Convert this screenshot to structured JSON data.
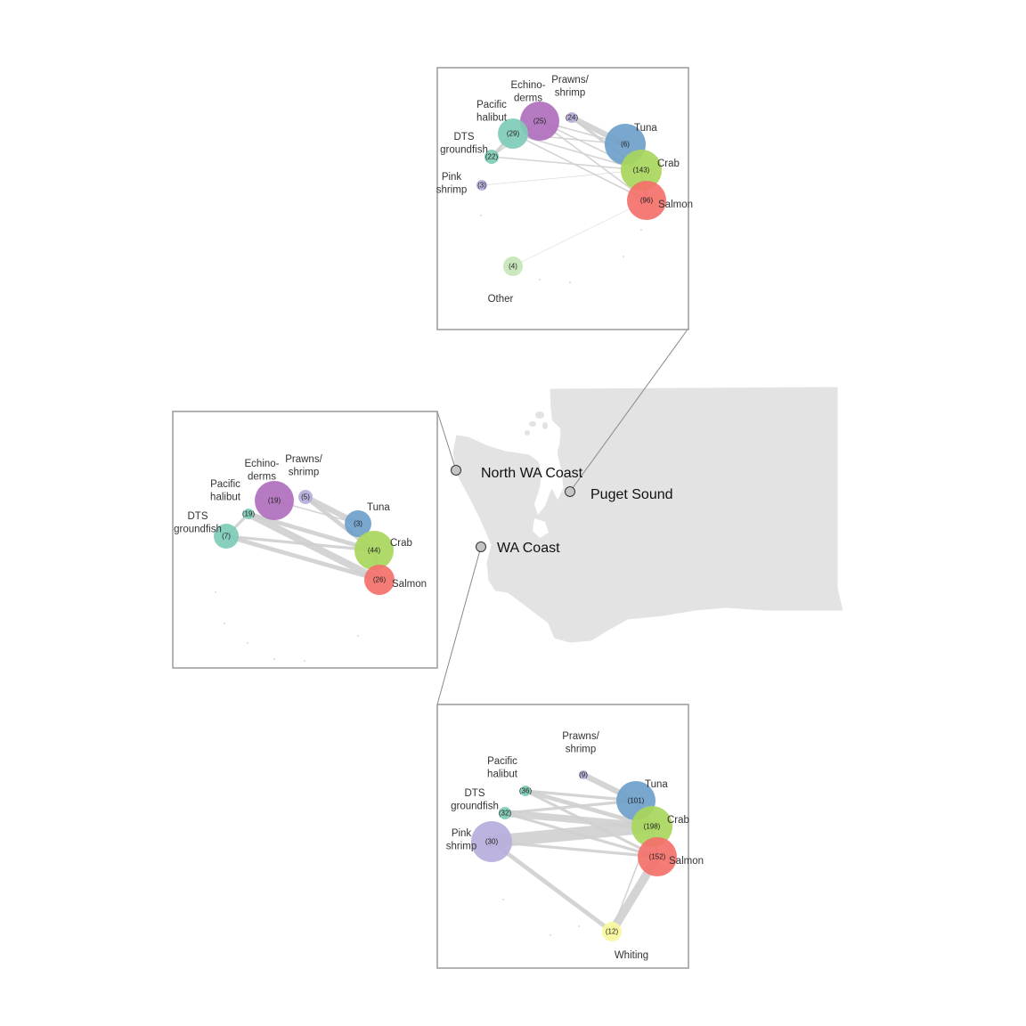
{
  "regions": [
    {
      "id": "north",
      "label": "North WA Coast"
    },
    {
      "id": "puget",
      "label": "Puget Sound"
    },
    {
      "id": "wa",
      "label": "WA Coast"
    }
  ],
  "networks": {
    "puget": {
      "nodes": [
        {
          "id": "echinoderms",
          "label": [
            "Echino-",
            "derms"
          ],
          "count": "(25)",
          "color": "#b06fbd"
        },
        {
          "id": "prawns",
          "label": [
            "Prawns/",
            "shrimp"
          ],
          "count": "(24)",
          "color": "#b6aedb"
        },
        {
          "id": "halibut",
          "label": [
            "Pacific",
            "halibut"
          ],
          "count": "(29)",
          "color": "#7fcbb7"
        },
        {
          "id": "dts",
          "label": [
            "DTS",
            "groundfish"
          ],
          "count": "(22)",
          "color": "#7fcbb7"
        },
        {
          "id": "pinkshrimp",
          "label": [
            "Pink",
            "shrimp"
          ],
          "count": "(3)",
          "color": "#b6aedb"
        },
        {
          "id": "tuna",
          "label": [
            "Tuna"
          ],
          "count": "(6)",
          "color": "#6f9fca"
        },
        {
          "id": "crab",
          "label": [
            "Crab"
          ],
          "count": "(143)",
          "color": "#a8d65b"
        },
        {
          "id": "salmon",
          "label": [
            "Salmon"
          ],
          "count": "(96)",
          "color": "#f4706a"
        },
        {
          "id": "other",
          "label": [
            "Other"
          ],
          "count": "(4)",
          "color": "#c6e6b9"
        }
      ],
      "edges": [
        {
          "from": "prawns",
          "to": "tuna",
          "weight": 4
        },
        {
          "from": "prawns",
          "to": "crab",
          "weight": 2
        },
        {
          "from": "echinoderms",
          "to": "tuna",
          "weight": 1
        },
        {
          "from": "echinoderms",
          "to": "crab",
          "weight": 1
        },
        {
          "from": "echinoderms",
          "to": "salmon",
          "weight": 1
        },
        {
          "from": "echinoderms",
          "to": "dts",
          "weight": 1
        },
        {
          "from": "halibut",
          "to": "crab",
          "weight": 1
        },
        {
          "from": "halibut",
          "to": "salmon",
          "weight": 1
        },
        {
          "from": "halibut",
          "to": "tuna",
          "weight": 1
        },
        {
          "from": "halibut",
          "to": "dts",
          "weight": 2
        },
        {
          "from": "dts",
          "to": "crab",
          "weight": 1
        },
        {
          "from": "pinkshrimp",
          "to": "crab",
          "weight": 0.5
        },
        {
          "from": "tuna",
          "to": "crab",
          "weight": 1
        },
        {
          "from": "crab",
          "to": "salmon",
          "weight": 2
        },
        {
          "from": "other",
          "to": "salmon",
          "weight": 0.4
        }
      ]
    },
    "north": {
      "nodes": [
        {
          "id": "echinoderms",
          "label": [
            "Echino-",
            "derms"
          ],
          "count": "(19)",
          "color": "#b06fbd"
        },
        {
          "id": "prawns",
          "label": [
            "Prawns/",
            "shrimp"
          ],
          "count": "(5)",
          "color": "#b6aedb"
        },
        {
          "id": "halibut",
          "label": [
            "Pacific",
            "halibut"
          ],
          "count": "(19)",
          "color": "#7fcbb7"
        },
        {
          "id": "dts",
          "label": [
            "DTS",
            "groundfish"
          ],
          "count": "(7)",
          "color": "#7fcbb7"
        },
        {
          "id": "tuna",
          "label": [
            "Tuna"
          ],
          "count": "(3)",
          "color": "#6f9fca"
        },
        {
          "id": "crab",
          "label": [
            "Crab"
          ],
          "count": "(44)",
          "color": "#a8d65b"
        },
        {
          "id": "salmon",
          "label": [
            "Salmon"
          ],
          "count": "(26)",
          "color": "#f4706a"
        }
      ],
      "edges": [
        {
          "from": "prawns",
          "to": "tuna",
          "weight": 4
        },
        {
          "from": "prawns",
          "to": "crab",
          "weight": 3
        },
        {
          "from": "echinoderms",
          "to": "tuna",
          "weight": 1
        },
        {
          "from": "halibut",
          "to": "salmon",
          "weight": 5
        },
        {
          "from": "halibut",
          "to": "crab",
          "weight": 3
        },
        {
          "from": "halibut",
          "to": "dts",
          "weight": 2
        },
        {
          "from": "dts",
          "to": "salmon",
          "weight": 3
        },
        {
          "from": "dts",
          "to": "crab",
          "weight": 2
        },
        {
          "from": "tuna",
          "to": "crab",
          "weight": 1
        },
        {
          "from": "crab",
          "to": "salmon",
          "weight": 2
        }
      ]
    },
    "wa": {
      "nodes": [
        {
          "id": "prawns",
          "label": [
            "Prawns/",
            "shrimp"
          ],
          "count": "(9)",
          "color": "#b6aedb"
        },
        {
          "id": "halibut",
          "label": [
            "Pacific",
            "halibut"
          ],
          "count": "(36)",
          "color": "#7fcbb7"
        },
        {
          "id": "dts",
          "label": [
            "DTS",
            "groundfish"
          ],
          "count": "(32)",
          "color": "#7fcbb7"
        },
        {
          "id": "pinkshrimp",
          "label": [
            "Pink",
            "shrimp"
          ],
          "count": "(30)",
          "color": "#b6aedb"
        },
        {
          "id": "tuna",
          "label": [
            "Tuna"
          ],
          "count": "(101)",
          "color": "#6f9fca"
        },
        {
          "id": "crab",
          "label": [
            "Crab"
          ],
          "count": "(198)",
          "color": "#a8d65b"
        },
        {
          "id": "salmon",
          "label": [
            "Salmon"
          ],
          "count": "(152)",
          "color": "#f4706a"
        },
        {
          "id": "whiting",
          "label": [
            "Whiting"
          ],
          "count": "(12)",
          "color": "#f9f79c"
        }
      ],
      "edges": [
        {
          "from": "prawns",
          "to": "tuna",
          "weight": 4
        },
        {
          "from": "halibut",
          "to": "tuna",
          "weight": 2
        },
        {
          "from": "halibut",
          "to": "crab",
          "weight": 3
        },
        {
          "from": "halibut",
          "to": "salmon",
          "weight": 2
        },
        {
          "from": "dts",
          "to": "crab",
          "weight": 5
        },
        {
          "from": "dts",
          "to": "salmon",
          "weight": 2
        },
        {
          "from": "dts",
          "to": "tuna",
          "weight": 2
        },
        {
          "from": "pinkshrimp",
          "to": "crab",
          "weight": 9
        },
        {
          "from": "pinkshrimp",
          "to": "salmon",
          "weight": 2
        },
        {
          "from": "pinkshrimp",
          "to": "whiting",
          "weight": 3
        },
        {
          "from": "tuna",
          "to": "crab",
          "weight": 2
        },
        {
          "from": "crab",
          "to": "salmon",
          "weight": 2
        },
        {
          "from": "salmon",
          "to": "whiting",
          "weight": 6
        },
        {
          "from": "crab",
          "to": "whiting",
          "weight": 1
        }
      ]
    }
  }
}
